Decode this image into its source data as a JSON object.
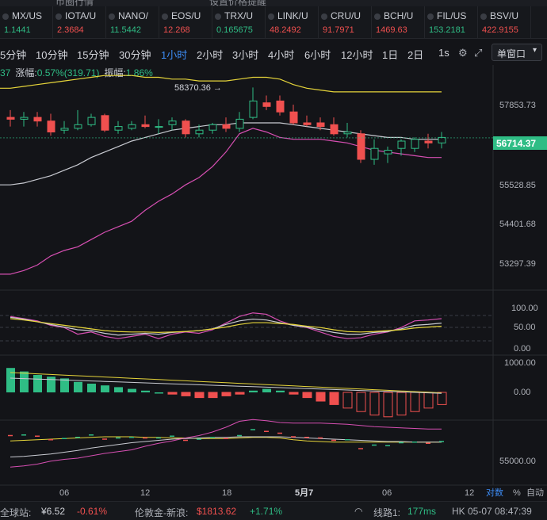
{
  "top_strip": {
    "left_text": "币圈行情",
    "right_text": "设置价格提醒"
  },
  "tickers": [
    {
      "name": "MX/US",
      "price": "1.1441",
      "dir": "up"
    },
    {
      "name": "IOTA/U",
      "price": "2.3684",
      "dir": "down"
    },
    {
      "name": "NANO/",
      "price": "11.5442",
      "dir": "up"
    },
    {
      "name": "EOS/U",
      "price": "12.268",
      "dir": "down"
    },
    {
      "name": "TRX/U",
      "price": "0.165675",
      "dir": "up"
    },
    {
      "name": "LINK/U",
      "price": "48.2492",
      "dir": "down"
    },
    {
      "name": "CRU/U",
      "price": "91.7971",
      "dir": "down"
    },
    {
      "name": "BCH/U",
      "price": "1469.63",
      "dir": "down"
    },
    {
      "name": "FIL/US",
      "price": "153.2181",
      "dir": "up"
    },
    {
      "name": "BSV/U",
      "price": "422.9155",
      "dir": "down"
    }
  ],
  "timeframes": [
    "5分钟",
    "10分钟",
    "15分钟",
    "30分钟",
    "1小时",
    "2小时",
    "3小时",
    "4小时",
    "6小时",
    "12小时",
    "1日",
    "2日"
  ],
  "active_timeframe": "1小时",
  "toolbar": {
    "seconds_label": "1s",
    "window_label": "单窗口"
  },
  "info": {
    "prefix": "37",
    "change_label": "涨幅:",
    "change_value": "0.57%(319.71)",
    "amplitude_label": "振幅:",
    "amplitude_value": "1.86%"
  },
  "price_axis": {
    "labels": [
      "57853.73",
      "55528.85",
      "54401.68",
      "53297.39"
    ],
    "current_price": "56714.37",
    "high_marker": "58370.36 →"
  },
  "indicator1_axis": [
    "100.00",
    "50.00",
    "0.00"
  ],
  "indicator2_axis": [
    "1000.00",
    "0.00"
  ],
  "indicator3_axis": [
    "55000.00"
  ],
  "time_axis": [
    "06",
    "12",
    "18",
    "5月7",
    "06",
    "12"
  ],
  "axis_options": {
    "log": "对数",
    "percent": "%",
    "auto": "自动"
  },
  "status": {
    "left": "全球站:",
    "price1": "¥6.52",
    "change1": "-0.61%",
    "mid": "伦敦金-新浪:",
    "price2": "$1813.62",
    "change2": "+1.71%",
    "line": "线路1:",
    "latency": "177ms",
    "clock": "HK 05-07 08:47:39"
  },
  "colors": {
    "up": "#2fbd85",
    "down": "#f0504f",
    "accent": "#3d8cf5",
    "upper_band": "#e5d43a",
    "lower_band": "#d64fb2",
    "middle_band": "#c9cbd2"
  },
  "chart_data": {
    "type": "candlestick",
    "price_range": [
      52900,
      58900
    ],
    "candles": [
      {
        "o": 57550,
        "h": 57750,
        "l": 57300,
        "c": 57500
      },
      {
        "o": 57500,
        "h": 57700,
        "l": 57300,
        "c": 57550
      },
      {
        "o": 57550,
        "h": 57700,
        "l": 57300,
        "c": 57450
      },
      {
        "o": 57450,
        "h": 57650,
        "l": 57050,
        "c": 57150
      },
      {
        "o": 57200,
        "h": 57450,
        "l": 57100,
        "c": 57250
      },
      {
        "o": 57250,
        "h": 57750,
        "l": 57200,
        "c": 57350
      },
      {
        "o": 57350,
        "h": 57650,
        "l": 57300,
        "c": 57550
      },
      {
        "o": 57600,
        "h": 57650,
        "l": 57150,
        "c": 57200
      },
      {
        "o": 57200,
        "h": 57450,
        "l": 57100,
        "c": 57300
      },
      {
        "o": 57250,
        "h": 57450,
        "l": 57200,
        "c": 57350
      },
      {
        "o": 57350,
        "h": 57600,
        "l": 57250,
        "c": 57300
      },
      {
        "o": 57300,
        "h": 57500,
        "l": 57100,
        "c": 57300
      },
      {
        "o": 57350,
        "h": 57550,
        "l": 57200,
        "c": 57450
      },
      {
        "o": 57450,
        "h": 57500,
        "l": 57000,
        "c": 57100
      },
      {
        "o": 57100,
        "h": 57350,
        "l": 57000,
        "c": 57200
      },
      {
        "o": 57200,
        "h": 57400,
        "l": 57100,
        "c": 57350
      },
      {
        "o": 57350,
        "h": 57550,
        "l": 57150,
        "c": 57250
      },
      {
        "o": 57250,
        "h": 57700,
        "l": 57150,
        "c": 57500
      },
      {
        "o": 57550,
        "h": 58370,
        "l": 57500,
        "c": 58000
      },
      {
        "o": 57950,
        "h": 58150,
        "l": 57750,
        "c": 57850
      },
      {
        "o": 58000,
        "h": 58150,
        "l": 57600,
        "c": 57700
      },
      {
        "o": 57700,
        "h": 57900,
        "l": 57350,
        "c": 57400
      },
      {
        "o": 57400,
        "h": 57600,
        "l": 57300,
        "c": 57350
      },
      {
        "o": 57400,
        "h": 57550,
        "l": 57200,
        "c": 57300
      },
      {
        "o": 57350,
        "h": 57550,
        "l": 57050,
        "c": 57100
      },
      {
        "o": 57100,
        "h": 57400,
        "l": 57000,
        "c": 57150
      },
      {
        "o": 57100,
        "h": 57200,
        "l": 56300,
        "c": 56400
      },
      {
        "o": 56400,
        "h": 56950,
        "l": 56250,
        "c": 56700
      },
      {
        "o": 56550,
        "h": 56750,
        "l": 56300,
        "c": 56650
      },
      {
        "o": 56700,
        "h": 56950,
        "l": 56500,
        "c": 56900
      },
      {
        "o": 56700,
        "h": 57000,
        "l": 56600,
        "c": 56950
      },
      {
        "o": 56900,
        "h": 57100,
        "l": 56700,
        "c": 56850
      },
      {
        "o": 56850,
        "h": 57150,
        "l": 56700,
        "c": 57000
      }
    ],
    "band_upper": [
      58350,
      58400,
      58450,
      58500,
      58550,
      58600,
      58650,
      58700,
      58700,
      58700,
      58650,
      58650,
      58600,
      58600,
      58550,
      58550,
      58550,
      58600,
      58650,
      58650,
      58600,
      58450,
      58350,
      58300,
      58250,
      58250,
      58250,
      58250,
      58250,
      58250,
      58250,
      58250,
      58250
    ],
    "band_middle": [
      55700,
      55750,
      55850,
      55950,
      56100,
      56250,
      56450,
      56600,
      56750,
      56900,
      57000,
      57100,
      57200,
      57250,
      57300,
      57350,
      57350,
      57400,
      57400,
      57400,
      57400,
      57350,
      57300,
      57250,
      57200,
      57150,
      57100,
      57050,
      57000,
      57000,
      56950,
      56950,
      56950
    ],
    "band_lower": [
      53250,
      53350,
      53500,
      53750,
      53900,
      54000,
      54200,
      54400,
      54550,
      54700,
      55000,
      55250,
      55450,
      55700,
      55900,
      56200,
      56600,
      57100,
      57250,
      57150,
      57000,
      56950,
      56950,
      56950,
      56900,
      56850,
      56750,
      56650,
      56600,
      56550,
      56500,
      56450,
      56450
    ]
  }
}
